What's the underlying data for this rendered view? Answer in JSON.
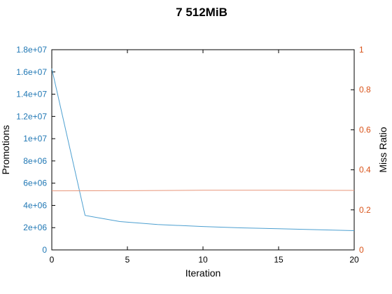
{
  "chart_data": {
    "type": "line",
    "title": "7 512MiB",
    "xlabel": "Iteration",
    "ylabel_left": "Promotions",
    "ylabel_right": "Miss Ratio",
    "xlim": [
      0,
      20
    ],
    "ylim_left": [
      0,
      18000000
    ],
    "ylim_right": [
      0,
      1
    ],
    "x_ticks": [
      "0",
      "5",
      "10",
      "15",
      "20"
    ],
    "y_left_ticks": [
      "0",
      "2e+06",
      "4e+06",
      "6e+06",
      "8e+06",
      "1e+07",
      "1.2e+07",
      "1.4e+07",
      "1.6e+07",
      "1.8e+07"
    ],
    "y_right_ticks": [
      "0",
      "0.2",
      "0.4",
      "0.6",
      "0.8",
      "1"
    ],
    "grid": false,
    "colors": {
      "left_axis": "#1f77b4",
      "right_axis": "#d95319",
      "promotions_line": "#4c9fd0",
      "miss_line": "#e8967a"
    },
    "series": [
      {
        "axis": "left",
        "x": [
          0,
          2.2,
          4.5,
          7,
          10,
          12.5,
          15,
          17.5,
          20
        ],
        "values": [
          16300000,
          3100000,
          2550000,
          2280000,
          2100000,
          1980000,
          1900000,
          1820000,
          1730000
        ]
      },
      {
        "axis": "right",
        "x": [
          0,
          5,
          10,
          15,
          20
        ],
        "values": [
          0.295,
          0.296,
          0.298,
          0.298,
          0.297
        ]
      }
    ]
  }
}
